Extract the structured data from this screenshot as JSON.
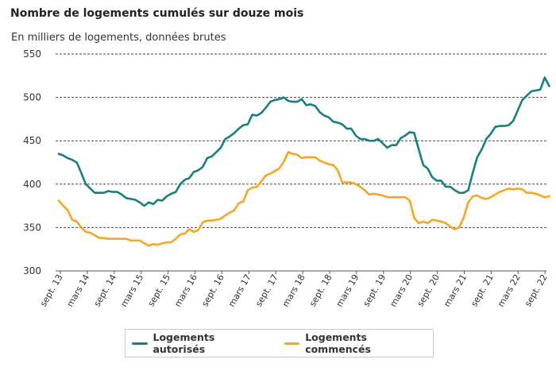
{
  "chart_data": {
    "type": "line",
    "title": "Nombre de logements cumulés sur douze mois",
    "subtitle": "En milliers de logements, données brutes",
    "ylim": [
      300,
      550
    ],
    "yticks": [
      300,
      350,
      400,
      450,
      500,
      550
    ],
    "x_tick_labels": [
      "sept. 13",
      "mars 14",
      "sept. 14",
      "mars 15",
      "sept. 15",
      "mars 16",
      "sept. 16",
      "mars 17",
      "sept. 17",
      "mars 18",
      "sept. 18",
      "mars 19",
      "sept. 19",
      "mars 20",
      "sept. 20",
      "mars 21",
      "sept. 21",
      "mars 22",
      "sept. 22"
    ],
    "grid": "horizontal dashed",
    "legend_position": "bottom",
    "colors": {
      "autorises": "#17807e",
      "commences": "#f5a623"
    },
    "series": [
      {
        "name": "Logements autorisés",
        "color": "#17807e",
        "points": [
          [
            0,
            435
          ],
          [
            1,
            433
          ],
          [
            2,
            430
          ],
          [
            3,
            428
          ],
          [
            4,
            425
          ],
          [
            5,
            413
          ],
          [
            6,
            400
          ],
          [
            7,
            395
          ],
          [
            8,
            390
          ],
          [
            9,
            390
          ],
          [
            10,
            390
          ],
          [
            11,
            392
          ],
          [
            12,
            391
          ],
          [
            13,
            391
          ],
          [
            14,
            388
          ],
          [
            15,
            384
          ],
          [
            16,
            383
          ],
          [
            17,
            382
          ],
          [
            18,
            379
          ],
          [
            19,
            375
          ],
          [
            20,
            379
          ],
          [
            21,
            377
          ],
          [
            22,
            382
          ],
          [
            23,
            381
          ],
          [
            24,
            386
          ],
          [
            25,
            389
          ],
          [
            26,
            391
          ],
          [
            27,
            400
          ],
          [
            28,
            405
          ],
          [
            29,
            407
          ],
          [
            30,
            414
          ],
          [
            31,
            416
          ],
          [
            32,
            420
          ],
          [
            33,
            430
          ],
          [
            34,
            432
          ],
          [
            35,
            437
          ],
          [
            36,
            442
          ],
          [
            37,
            452
          ],
          [
            38,
            455
          ],
          [
            39,
            459
          ],
          [
            40,
            464
          ],
          [
            41,
            468
          ],
          [
            42,
            469
          ],
          [
            43,
            480
          ],
          [
            44,
            479
          ],
          [
            45,
            482
          ],
          [
            46,
            488
          ],
          [
            47,
            495
          ],
          [
            48,
            497
          ],
          [
            49,
            498
          ],
          [
            50,
            500
          ],
          [
            51,
            496
          ],
          [
            52,
            495
          ],
          [
            53,
            495
          ],
          [
            54,
            498
          ],
          [
            55,
            491
          ],
          [
            56,
            492
          ],
          [
            57,
            490
          ],
          [
            58,
            483
          ],
          [
            59,
            479
          ],
          [
            60,
            477
          ],
          [
            61,
            472
          ],
          [
            62,
            471
          ],
          [
            63,
            469
          ],
          [
            64,
            464
          ],
          [
            65,
            464
          ],
          [
            66,
            456
          ],
          [
            67,
            452
          ],
          [
            68,
            452
          ],
          [
            69,
            450
          ],
          [
            70,
            450
          ],
          [
            71,
            452
          ],
          [
            72,
            447
          ],
          [
            73,
            442
          ],
          [
            74,
            445
          ],
          [
            75,
            445
          ],
          [
            76,
            453
          ],
          [
            77,
            456
          ],
          [
            78,
            460
          ],
          [
            79,
            459
          ],
          [
            80,
            440
          ],
          [
            81,
            422
          ],
          [
            82,
            418
          ],
          [
            83,
            408
          ],
          [
            84,
            404
          ],
          [
            85,
            404
          ],
          [
            86,
            397
          ],
          [
            87,
            397
          ],
          [
            88,
            393
          ],
          [
            89,
            390
          ],
          [
            90,
            390
          ],
          [
            91,
            393
          ],
          [
            92,
            413
          ],
          [
            93,
            431
          ],
          [
            94,
            440
          ],
          [
            95,
            452
          ],
          [
            96,
            458
          ],
          [
            97,
            466
          ],
          [
            98,
            467
          ],
          [
            99,
            467
          ],
          [
            100,
            468
          ],
          [
            101,
            473
          ],
          [
            102,
            485
          ],
          [
            103,
            497
          ],
          [
            104,
            502
          ],
          [
            105,
            507
          ],
          [
            106,
            508
          ],
          [
            107,
            509
          ],
          [
            108,
            523
          ],
          [
            109,
            513
          ]
        ]
      },
      {
        "name": "Logements commencés",
        "color": "#f5a623",
        "points": [
          [
            0,
            381
          ],
          [
            1,
            375
          ],
          [
            2,
            370
          ],
          [
            3,
            359
          ],
          [
            4,
            357
          ],
          [
            5,
            350
          ],
          [
            6,
            345
          ],
          [
            7,
            344
          ],
          [
            8,
            341
          ],
          [
            9,
            338
          ],
          [
            10,
            338
          ],
          [
            11,
            337
          ],
          [
            12,
            337
          ],
          [
            13,
            337
          ],
          [
            14,
            337
          ],
          [
            15,
            337
          ],
          [
            16,
            335
          ],
          [
            17,
            335
          ],
          [
            18,
            335
          ],
          [
            19,
            332
          ],
          [
            20,
            329
          ],
          [
            21,
            331
          ],
          [
            22,
            330
          ],
          [
            23,
            332
          ],
          [
            24,
            333
          ],
          [
            25,
            333
          ],
          [
            26,
            337
          ],
          [
            27,
            342
          ],
          [
            28,
            343
          ],
          [
            29,
            348
          ],
          [
            30,
            345
          ],
          [
            31,
            347
          ],
          [
            32,
            356
          ],
          [
            33,
            358
          ],
          [
            34,
            358
          ],
          [
            35,
            359
          ],
          [
            36,
            360
          ],
          [
            37,
            364
          ],
          [
            38,
            367
          ],
          [
            39,
            370
          ],
          [
            40,
            378
          ],
          [
            41,
            380
          ],
          [
            42,
            393
          ],
          [
            43,
            396
          ],
          [
            44,
            397
          ],
          [
            45,
            403
          ],
          [
            46,
            410
          ],
          [
            47,
            412
          ],
          [
            48,
            415
          ],
          [
            49,
            418
          ],
          [
            50,
            426
          ],
          [
            51,
            437
          ],
          [
            52,
            435
          ],
          [
            53,
            434
          ],
          [
            54,
            430
          ],
          [
            55,
            431
          ],
          [
            56,
            431
          ],
          [
            57,
            431
          ],
          [
            58,
            427
          ],
          [
            59,
            425
          ],
          [
            60,
            423
          ],
          [
            61,
            422
          ],
          [
            62,
            416
          ],
          [
            63,
            402
          ],
          [
            64,
            402
          ],
          [
            65,
            402
          ],
          [
            66,
            400
          ],
          [
            67,
            397
          ],
          [
            68,
            393
          ],
          [
            69,
            388
          ],
          [
            70,
            389
          ],
          [
            71,
            388
          ],
          [
            72,
            387
          ],
          [
            73,
            385
          ],
          [
            74,
            385
          ],
          [
            75,
            385
          ],
          [
            76,
            385
          ],
          [
            77,
            385
          ],
          [
            78,
            381
          ],
          [
            79,
            361
          ],
          [
            80,
            355
          ],
          [
            81,
            357
          ],
          [
            82,
            355
          ],
          [
            83,
            359
          ],
          [
            84,
            358
          ],
          [
            85,
            357
          ],
          [
            86,
            355
          ],
          [
            87,
            351
          ],
          [
            88,
            348
          ],
          [
            89,
            350
          ],
          [
            90,
            362
          ],
          [
            91,
            379
          ],
          [
            92,
            386
          ],
          [
            93,
            387
          ],
          [
            94,
            384
          ],
          [
            95,
            383
          ],
          [
            96,
            385
          ],
          [
            97,
            388
          ],
          [
            98,
            391
          ],
          [
            99,
            393
          ],
          [
            100,
            395
          ],
          [
            101,
            394
          ],
          [
            102,
            395
          ],
          [
            103,
            394
          ],
          [
            104,
            390
          ],
          [
            105,
            390
          ],
          [
            106,
            389
          ],
          [
            107,
            387
          ],
          [
            108,
            385
          ],
          [
            109,
            386
          ]
        ]
      }
    ]
  }
}
